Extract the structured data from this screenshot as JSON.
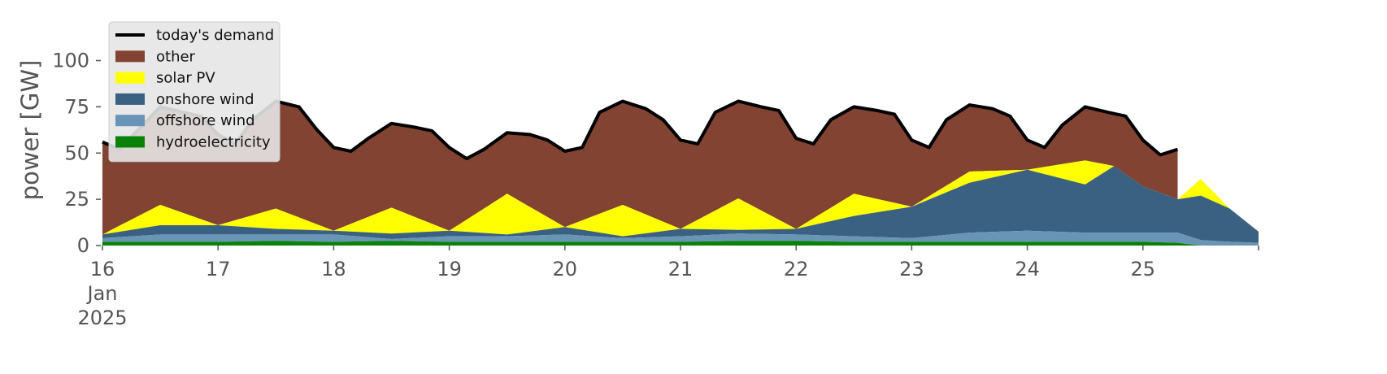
{
  "chart_data": {
    "type": "area",
    "ylabel": "power [GW]",
    "ylim": [
      0,
      120
    ],
    "xlim": [
      16,
      26
    ],
    "y_ticks": [
      0,
      25,
      50,
      75,
      100
    ],
    "x_ticks": [
      {
        "value": 16,
        "label": "16"
      },
      {
        "value": 17,
        "label": "17"
      },
      {
        "value": 18,
        "label": "18"
      },
      {
        "value": 19,
        "label": "19"
      },
      {
        "value": 20,
        "label": "20"
      },
      {
        "value": 21,
        "label": "21"
      },
      {
        "value": 22,
        "label": "22"
      },
      {
        "value": 23,
        "label": "23"
      },
      {
        "value": 24,
        "label": "24"
      },
      {
        "value": 25,
        "label": "25"
      }
    ],
    "x_first_sublabel": [
      "Jan",
      "2025"
    ],
    "legend_position": "upper-left",
    "grid": false,
    "background": "#ffffff",
    "legend": [
      {
        "label": "today's demand",
        "kind": "line",
        "color": "#000000"
      },
      {
        "label": "other",
        "kind": "area",
        "color": "#824332"
      },
      {
        "label": "solar PV",
        "kind": "area",
        "color": "#ffff00"
      },
      {
        "label": "onshore wind",
        "kind": "area",
        "color": "#3b6182"
      },
      {
        "label": "offshore wind",
        "kind": "area",
        "color": "#6895b5"
      },
      {
        "label": "hydroelectricity",
        "kind": "area",
        "color": "#0a820a"
      }
    ],
    "stack": {
      "x": [
        16.0,
        16.5,
        17.0,
        17.5,
        18.0,
        18.5,
        19.0,
        19.5,
        20.0,
        20.5,
        21.0,
        21.5,
        22.0,
        22.5,
        23.0,
        23.5,
        24.0,
        24.5,
        24.75,
        25.0,
        25.3,
        25.5,
        25.75,
        26.0
      ],
      "hydroelectricity": [
        2,
        2,
        2,
        2.5,
        2,
        2.5,
        2,
        2,
        2,
        2,
        2,
        2.5,
        2.5,
        2,
        2,
        2,
        2,
        2,
        2,
        2,
        1.5,
        0,
        0,
        0
      ],
      "offshore_wind": [
        2,
        4,
        4,
        3.5,
        4,
        1,
        3,
        3,
        4,
        2,
        3,
        4,
        3.5,
        3,
        2,
        5,
        6,
        5,
        5,
        5,
        5.5,
        3,
        2,
        1.5
      ],
      "onshore_wind": [
        2,
        5,
        5,
        3,
        2,
        3,
        3,
        1,
        4,
        1,
        4,
        2,
        3,
        11,
        17,
        27,
        33,
        26,
        36,
        25,
        18,
        24,
        18,
        6
      ],
      "solar_pv": [
        0,
        11,
        0,
        11,
        0,
        14,
        0,
        22,
        0,
        17,
        0,
        17,
        0,
        12,
        0,
        6,
        0,
        13,
        0,
        0,
        0,
        9,
        0,
        0
      ]
    },
    "demand": {
      "x": [
        16.0,
        16.15,
        16.3,
        16.5,
        16.7,
        16.85,
        17.0,
        17.15,
        17.3,
        17.5,
        17.7,
        17.85,
        18.0,
        18.15,
        18.3,
        18.5,
        18.7,
        18.85,
        19.0,
        19.15,
        19.3,
        19.5,
        19.7,
        19.85,
        20.0,
        20.15,
        20.3,
        20.5,
        20.7,
        20.85,
        21.0,
        21.15,
        21.3,
        21.5,
        21.7,
        21.85,
        22.0,
        22.15,
        22.3,
        22.5,
        22.7,
        22.85,
        23.0,
        23.15,
        23.3,
        23.5,
        23.7,
        23.85,
        24.0,
        24.15,
        24.3,
        24.5,
        24.7,
        24.85,
        25.0,
        25.15,
        25.3
      ],
      "values": [
        56,
        52,
        62,
        75,
        72,
        70,
        60,
        55,
        68,
        78,
        75,
        63,
        53,
        51,
        58,
        66,
        64,
        62,
        53,
        47,
        52,
        61,
        60,
        57,
        51,
        53,
        72,
        78,
        74,
        68,
        57,
        55,
        72,
        78,
        75,
        73,
        58,
        55,
        68,
        75,
        73,
        71,
        57,
        53,
        68,
        76,
        74,
        70,
        57,
        53,
        65,
        75,
        72,
        70,
        57,
        49,
        52
      ]
    }
  }
}
